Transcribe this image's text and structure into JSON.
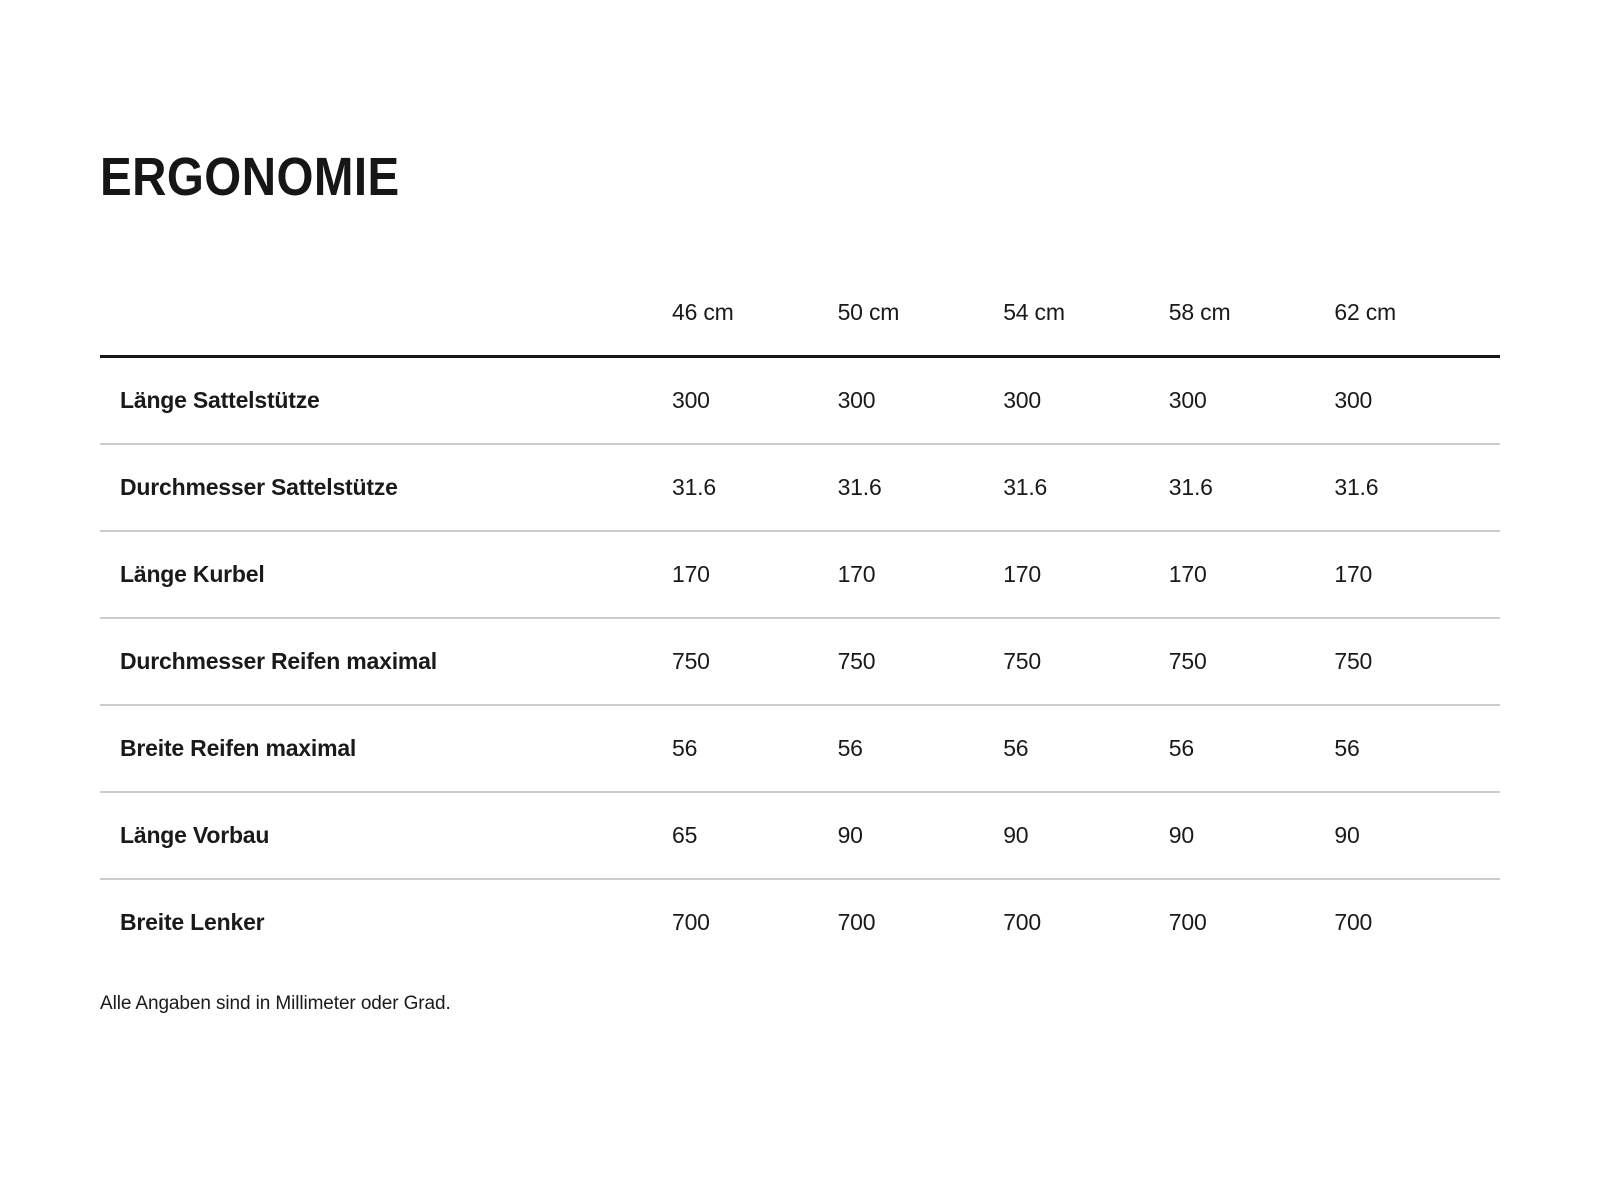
{
  "title": "ERGONOMIE",
  "footnote": "Alle Angaben sind in Millimeter oder Grad.",
  "colors": {
    "background": "#ffffff",
    "text": "#1a1a1a",
    "header_rule": "#161616",
    "row_separator": "#cccccc"
  },
  "chart_data": {
    "type": "table",
    "title": "ERGONOMIE",
    "columns": [
      "46 cm",
      "50 cm",
      "54 cm",
      "58 cm",
      "62 cm"
    ],
    "rows": [
      {
        "label": "Länge Sattelstütze",
        "values": [
          "300",
          "300",
          "300",
          "300",
          "300"
        ]
      },
      {
        "label": "Durchmesser Sattelstütze",
        "values": [
          "31.6",
          "31.6",
          "31.6",
          "31.6",
          "31.6"
        ]
      },
      {
        "label": "Länge Kurbel",
        "values": [
          "170",
          "170",
          "170",
          "170",
          "170"
        ]
      },
      {
        "label": "Durchmesser Reifen maximal",
        "values": [
          "750",
          "750",
          "750",
          "750",
          "750"
        ]
      },
      {
        "label": "Breite Reifen maximal",
        "values": [
          "56",
          "56",
          "56",
          "56",
          "56"
        ]
      },
      {
        "label": "Länge Vorbau",
        "values": [
          "65",
          "90",
          "90",
          "90",
          "90"
        ]
      },
      {
        "label": "Breite Lenker",
        "values": [
          "700",
          "700",
          "700",
          "700",
          "700"
        ]
      }
    ],
    "footnote": "Alle Angaben sind in Millimeter oder Grad."
  }
}
